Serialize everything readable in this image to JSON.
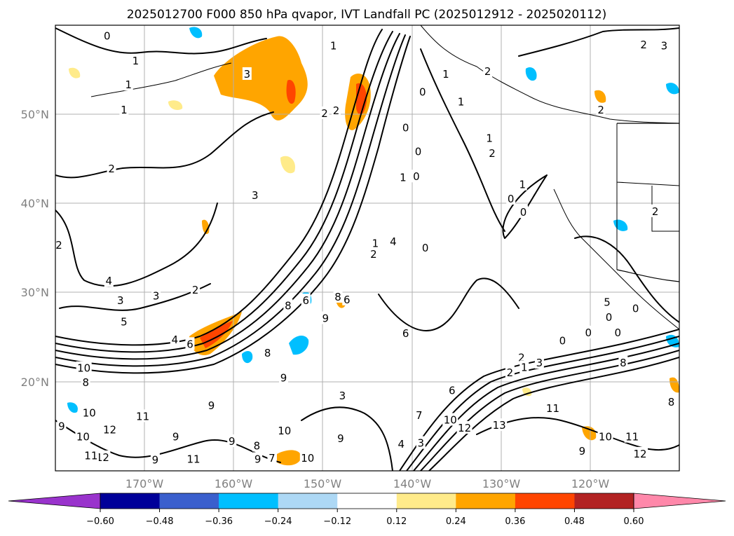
{
  "title": "2025012700 F000 850 hPa qvapor, IVT Landfall PC (2025012912 - 2025020112)",
  "map": {
    "lon_range": [
      -180,
      -110
    ],
    "lat_range": [
      10,
      60
    ],
    "lat_labels": [
      {
        "lat": 50,
        "label": "50°N"
      },
      {
        "lat": 40,
        "label": "40°N"
      },
      {
        "lat": 30,
        "label": "30°N"
      },
      {
        "lat": 20,
        "label": "20°N"
      }
    ],
    "lon_labels": [
      {
        "lon": -170,
        "label": "170°W"
      },
      {
        "lon": -160,
        "label": "160°W"
      },
      {
        "lon": -150,
        "label": "150°W"
      },
      {
        "lon": -140,
        "label": "140°W"
      },
      {
        "lon": -130,
        "label": "130°W"
      },
      {
        "lon": -120,
        "label": "120°W"
      }
    ],
    "gridlines": true,
    "contour_labels": [
      {
        "t": "0",
        "lon": -174.2,
        "lat": 58.8
      },
      {
        "t": "1",
        "lon": -171,
        "lat": 56
      },
      {
        "t": "3",
        "lon": -158.5,
        "lat": 54.5
      },
      {
        "t": "1",
        "lon": -172.3,
        "lat": 50.5
      },
      {
        "t": "1",
        "lon": -171.8,
        "lat": 53.3
      },
      {
        "t": "2",
        "lon": -149.8,
        "lat": 50.1
      },
      {
        "t": "2",
        "lon": -148.5,
        "lat": 50.4
      },
      {
        "t": "0",
        "lon": -138.8,
        "lat": 52.5
      },
      {
        "t": "1",
        "lon": -136.2,
        "lat": 54.5
      },
      {
        "t": "1",
        "lon": -134.5,
        "lat": 51.4
      },
      {
        "t": "2",
        "lon": -131.5,
        "lat": 54.8
      },
      {
        "t": "2",
        "lon": -114,
        "lat": 57.8
      },
      {
        "t": "3",
        "lon": -111.7,
        "lat": 57.7
      },
      {
        "t": "2",
        "lon": -118.8,
        "lat": 50.5
      },
      {
        "t": "1",
        "lon": -131.3,
        "lat": 47.3
      },
      {
        "t": "2",
        "lon": -131,
        "lat": 45.6
      },
      {
        "t": "1",
        "lon": -141,
        "lat": 42.9
      },
      {
        "t": "0",
        "lon": -139.5,
        "lat": 43
      },
      {
        "t": "0",
        "lon": -128.9,
        "lat": 40.5
      },
      {
        "t": "1",
        "lon": -127.6,
        "lat": 42.1
      },
      {
        "t": "0",
        "lon": -140.7,
        "lat": 48.5
      },
      {
        "t": "0",
        "lon": -139.3,
        "lat": 45.8
      },
      {
        "t": "0",
        "lon": -127.5,
        "lat": 39
      },
      {
        "t": "0",
        "lon": -138.5,
        "lat": 35
      },
      {
        "t": "2",
        "lon": -179.6,
        "lat": 35.3
      },
      {
        "t": "2",
        "lon": -173.7,
        "lat": 43.9
      },
      {
        "t": "3",
        "lon": -157.6,
        "lat": 40.9
      },
      {
        "t": "4",
        "lon": -174,
        "lat": 31.3
      },
      {
        "t": "3",
        "lon": -172.7,
        "lat": 29.1
      },
      {
        "t": "3",
        "lon": -168.7,
        "lat": 29.6
      },
      {
        "t": "5",
        "lon": -172.3,
        "lat": 26.7
      },
      {
        "t": "2",
        "lon": -164.3,
        "lat": 30.3
      },
      {
        "t": "4",
        "lon": -166.6,
        "lat": 24.7
      },
      {
        "t": "6",
        "lon": -164.9,
        "lat": 24.2
      },
      {
        "t": "9",
        "lon": -149.7,
        "lat": 27.1
      },
      {
        "t": "8",
        "lon": -153.9,
        "lat": 28.5
      },
      {
        "t": "6",
        "lon": -151.9,
        "lat": 29.1
      },
      {
        "t": "8",
        "lon": -148.3,
        "lat": 29.5
      },
      {
        "t": "6",
        "lon": -147.3,
        "lat": 29.2
      },
      {
        "t": "2",
        "lon": -144.3,
        "lat": 34.3
      },
      {
        "t": "1",
        "lon": -144.1,
        "lat": 35.5
      },
      {
        "t": "4",
        "lon": -142.1,
        "lat": 35.7
      },
      {
        "t": "6",
        "lon": -140.7,
        "lat": 25.4
      },
      {
        "t": "8",
        "lon": -156.2,
        "lat": 23.2
      },
      {
        "t": "9",
        "lon": -154.4,
        "lat": 20.4
      },
      {
        "t": "10",
        "lon": -176.8,
        "lat": 21.5
      },
      {
        "t": "8",
        "lon": -176.6,
        "lat": 19.9
      },
      {
        "t": "10",
        "lon": -176.2,
        "lat": 16.5
      },
      {
        "t": "9",
        "lon": -179.3,
        "lat": 15
      },
      {
        "t": "11",
        "lon": -170.2,
        "lat": 16.1
      },
      {
        "t": "12",
        "lon": -173.9,
        "lat": 14.6
      },
      {
        "t": "10",
        "lon": -176.9,
        "lat": 13.8
      },
      {
        "t": "12",
        "lon": -174.7,
        "lat": 11.5
      },
      {
        "t": "11",
        "lon": -176,
        "lat": 11.7
      },
      {
        "t": "9",
        "lon": -162.5,
        "lat": 17.3
      },
      {
        "t": "9",
        "lon": -166.5,
        "lat": 13.8
      },
      {
        "t": "9",
        "lon": -160.2,
        "lat": 13.3
      },
      {
        "t": "9",
        "lon": -168.8,
        "lat": 11.2
      },
      {
        "t": "11",
        "lon": -164.5,
        "lat": 11.3
      },
      {
        "t": "9",
        "lon": -157.3,
        "lat": 11.3
      },
      {
        "t": "7",
        "lon": -155.7,
        "lat": 11.4
      },
      {
        "t": "8",
        "lon": -157.4,
        "lat": 12.8
      },
      {
        "t": "10",
        "lon": -154.3,
        "lat": 14.5
      },
      {
        "t": "10",
        "lon": -151.7,
        "lat": 11.4
      },
      {
        "t": "9",
        "lon": -148,
        "lat": 13.6
      },
      {
        "t": "3",
        "lon": -147.8,
        "lat": 18.4
      },
      {
        "t": "4",
        "lon": -141.2,
        "lat": 13
      },
      {
        "t": "3",
        "lon": -139,
        "lat": 13.1
      },
      {
        "t": "7",
        "lon": -139.2,
        "lat": 16.2
      },
      {
        "t": "6",
        "lon": -135.5,
        "lat": 19
      },
      {
        "t": "10",
        "lon": -135.7,
        "lat": 15.7
      },
      {
        "t": "12",
        "lon": -134.1,
        "lat": 14.8
      },
      {
        "t": "13",
        "lon": -130.2,
        "lat": 15.1
      },
      {
        "t": "2",
        "lon": -127.7,
        "lat": 22.7
      },
      {
        "t": "3",
        "lon": -125.7,
        "lat": 22.1
      },
      {
        "t": "2",
        "lon": -129,
        "lat": 21
      },
      {
        "t": "1",
        "lon": -127.4,
        "lat": 21.6
      },
      {
        "t": "0",
        "lon": -123.1,
        "lat": 24.6
      },
      {
        "t": "0",
        "lon": -116.9,
        "lat": 25.5
      },
      {
        "t": "0",
        "lon": -120.2,
        "lat": 25.5
      },
      {
        "t": "0",
        "lon": -117.9,
        "lat": 27.2
      },
      {
        "t": "5",
        "lon": -118.1,
        "lat": 28.9
      },
      {
        "t": "0",
        "lon": -114.9,
        "lat": 28.2
      },
      {
        "t": "8",
        "lon": -116.3,
        "lat": 22.1
      },
      {
        "t": "11",
        "lon": -124.2,
        "lat": 17
      },
      {
        "t": "11",
        "lon": -115.3,
        "lat": 13.8
      },
      {
        "t": "12",
        "lon": -114.4,
        "lat": 11.9
      },
      {
        "t": "8",
        "lon": -110.9,
        "lat": 17.7
      },
      {
        "t": "10",
        "lon": -118.3,
        "lat": 13.8
      },
      {
        "t": "9",
        "lon": -120.9,
        "lat": 12.2
      },
      {
        "t": "2",
        "lon": -112.7,
        "lat": 39.1
      },
      {
        "t": "1",
        "lon": -148.8,
        "lat": 57.7
      }
    ]
  },
  "colorbar": {
    "ticks": [
      "−0.60",
      "−0.48",
      "−0.36",
      "−0.24",
      "−0.12",
      "0.12",
      "0.24",
      "0.36",
      "0.48",
      "0.60"
    ],
    "colors": [
      "#9933cc",
      "#000099",
      "#3a5fcd",
      "#00bfff",
      "#add8f5",
      "#ffffff",
      "#ffeb8a",
      "#ffa500",
      "#ff4500",
      "#b22222",
      "#ff88aa"
    ],
    "extend": "both"
  }
}
